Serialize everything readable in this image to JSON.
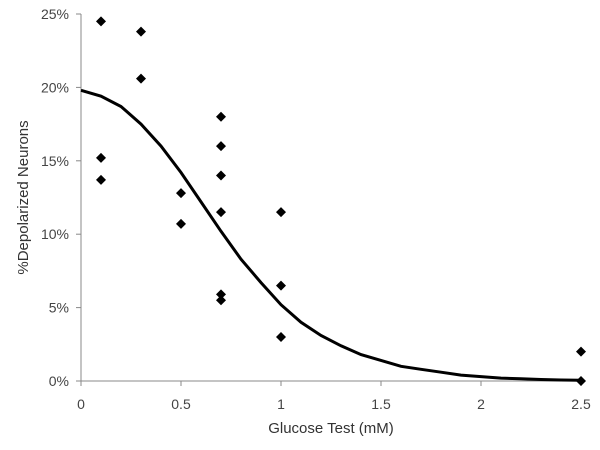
{
  "chart_data": {
    "type": "scatter",
    "title": "",
    "xlabel": "Glucose Test (mM)",
    "ylabel": "%Depolarized Neurons",
    "xlim": [
      0,
      2.5
    ],
    "ylim": [
      0,
      0.25
    ],
    "x_ticks": [
      0,
      0.5,
      1,
      1.5,
      2,
      2.5
    ],
    "x_tick_labels": [
      "0",
      "0.5",
      "1",
      "1.5",
      "2",
      "2.5"
    ],
    "y_ticks": [
      0,
      0.05,
      0.1,
      0.15,
      0.2,
      0.25
    ],
    "y_tick_labels": [
      "0%",
      "5%",
      "10%",
      "15%",
      "20%",
      "25%"
    ],
    "grid": false,
    "legend": "none",
    "marker": "diamond",
    "marker_color": "#000000",
    "series": [
      {
        "type": "scatter",
        "points": [
          {
            "x": 0.1,
            "y": 0.245
          },
          {
            "x": 0.1,
            "y": 0.152
          },
          {
            "x": 0.1,
            "y": 0.137
          },
          {
            "x": 0.3,
            "y": 0.238
          },
          {
            "x": 0.3,
            "y": 0.206
          },
          {
            "x": 0.5,
            "y": 0.128
          },
          {
            "x": 0.5,
            "y": 0.107
          },
          {
            "x": 0.7,
            "y": 0.18
          },
          {
            "x": 0.7,
            "y": 0.16
          },
          {
            "x": 0.7,
            "y": 0.14
          },
          {
            "x": 0.7,
            "y": 0.115
          },
          {
            "x": 0.7,
            "y": 0.059
          },
          {
            "x": 0.7,
            "y": 0.055
          },
          {
            "x": 1.0,
            "y": 0.115
          },
          {
            "x": 1.0,
            "y": 0.065
          },
          {
            "x": 1.0,
            "y": 0.03
          },
          {
            "x": 2.5,
            "y": 0.02
          },
          {
            "x": 2.5,
            "y": 0.0
          }
        ]
      },
      {
        "type": "line",
        "curve": "fit",
        "color": "#000000",
        "points": [
          {
            "x": 0.0,
            "y": 0.198
          },
          {
            "x": 0.1,
            "y": 0.194
          },
          {
            "x": 0.2,
            "y": 0.187
          },
          {
            "x": 0.3,
            "y": 0.175
          },
          {
            "x": 0.4,
            "y": 0.16
          },
          {
            "x": 0.5,
            "y": 0.142
          },
          {
            "x": 0.6,
            "y": 0.122
          },
          {
            "x": 0.7,
            "y": 0.102
          },
          {
            "x": 0.8,
            "y": 0.083
          },
          {
            "x": 0.9,
            "y": 0.067
          },
          {
            "x": 1.0,
            "y": 0.052
          },
          {
            "x": 1.1,
            "y": 0.04
          },
          {
            "x": 1.2,
            "y": 0.031
          },
          {
            "x": 1.3,
            "y": 0.024
          },
          {
            "x": 1.4,
            "y": 0.018
          },
          {
            "x": 1.5,
            "y": 0.014
          },
          {
            "x": 1.6,
            "y": 0.01
          },
          {
            "x": 1.7,
            "y": 0.008
          },
          {
            "x": 1.8,
            "y": 0.006
          },
          {
            "x": 1.9,
            "y": 0.004
          },
          {
            "x": 2.0,
            "y": 0.003
          },
          {
            "x": 2.1,
            "y": 0.002
          },
          {
            "x": 2.2,
            "y": 0.0015
          },
          {
            "x": 2.3,
            "y": 0.001
          },
          {
            "x": 2.4,
            "y": 0.0007
          },
          {
            "x": 2.5,
            "y": 0.0005
          }
        ]
      }
    ]
  }
}
